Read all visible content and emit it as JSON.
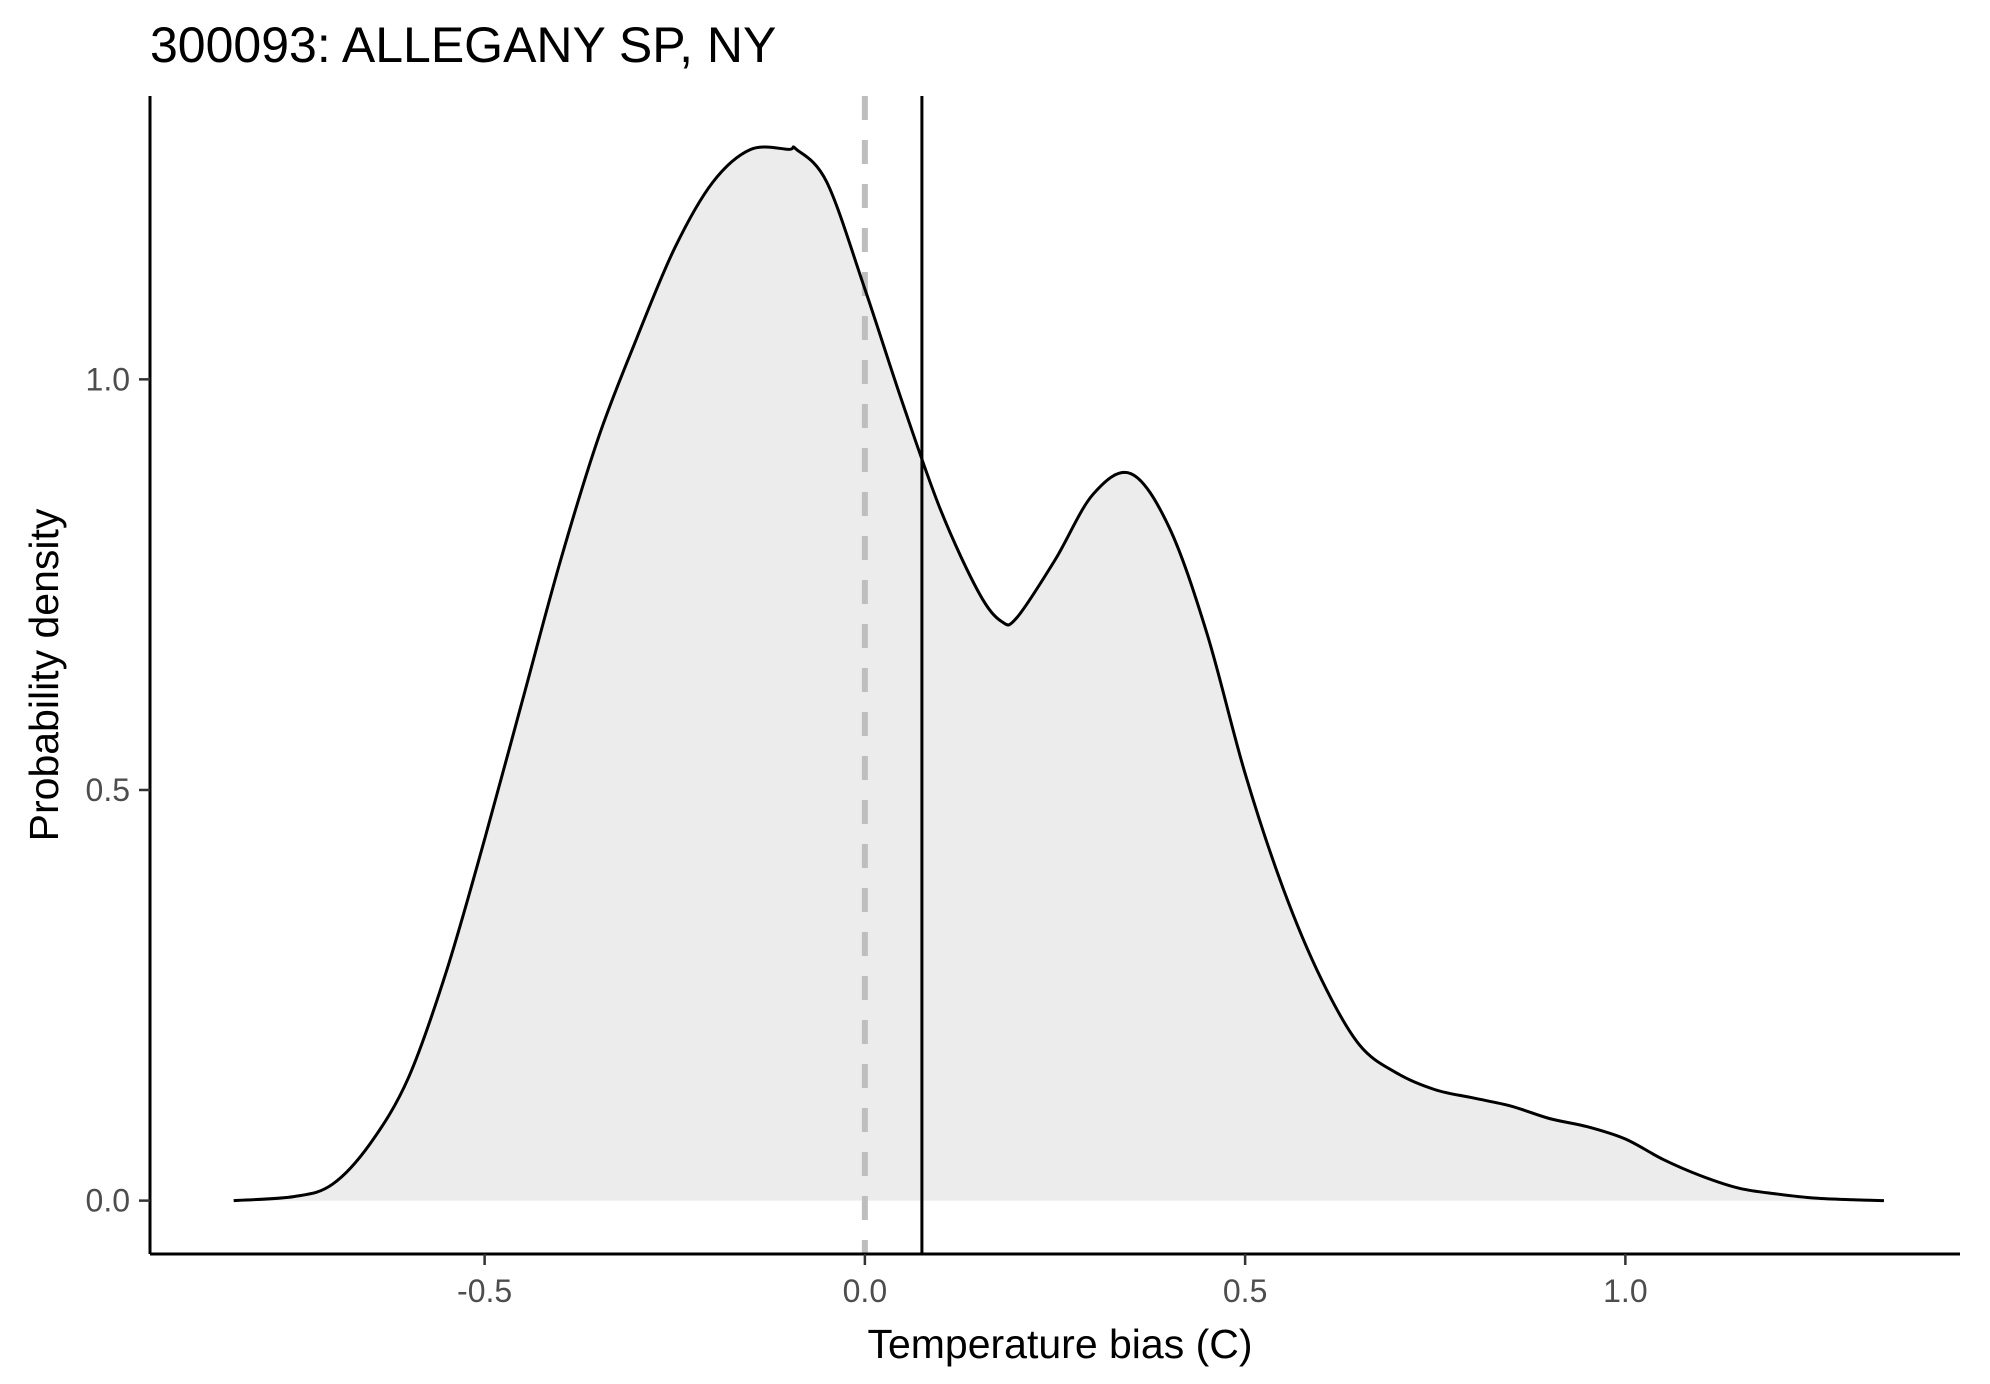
{
  "chart_data": {
    "type": "area",
    "title": "300093: ALLEGANY SP, NY",
    "xlabel": "Temperature bias (C)",
    "ylabel": "Probability density",
    "xlim": [
      -0.94,
      1.44
    ],
    "ylim": [
      -0.065,
      1.345
    ],
    "x_ticks": [
      -0.5,
      0.0,
      0.5,
      1.0
    ],
    "x_tick_labels": [
      "-0.5",
      "0.0",
      "0.5",
      "1.0"
    ],
    "y_ticks": [
      0.0,
      0.5,
      1.0
    ],
    "y_tick_labels": [
      "0.0",
      "0.5",
      "1.0"
    ],
    "grid": false,
    "reference_lines": [
      {
        "type": "vertical",
        "x": 0.0,
        "style": "dashed",
        "color": "#bebebe"
      },
      {
        "type": "vertical",
        "x": 0.075,
        "style": "solid",
        "color": "#000000"
      }
    ],
    "series": [
      {
        "fill": "#edeced",
        "line": "#000000",
        "x": [
          -0.83,
          -0.75,
          -0.7,
          -0.65,
          -0.6,
          -0.55,
          -0.5,
          -0.45,
          -0.4,
          -0.35,
          -0.3,
          -0.25,
          -0.2,
          -0.15,
          -0.1,
          -0.09,
          -0.05,
          0.0,
          0.05,
          0.1,
          0.15,
          0.18,
          0.2,
          0.25,
          0.3,
          0.35,
          0.4,
          0.45,
          0.5,
          0.55,
          0.6,
          0.65,
          0.7,
          0.75,
          0.8,
          0.85,
          0.9,
          0.95,
          1.0,
          1.05,
          1.1,
          1.15,
          1.2,
          1.25,
          1.3,
          1.34
        ],
        "y": [
          0.0,
          0.005,
          0.02,
          0.07,
          0.15,
          0.28,
          0.44,
          0.61,
          0.78,
          0.93,
          1.05,
          1.16,
          1.24,
          1.28,
          1.28,
          1.28,
          1.24,
          1.11,
          0.97,
          0.84,
          0.74,
          0.705,
          0.71,
          0.78,
          0.86,
          0.885,
          0.82,
          0.69,
          0.52,
          0.38,
          0.27,
          0.19,
          0.155,
          0.135,
          0.125,
          0.115,
          0.1,
          0.09,
          0.075,
          0.05,
          0.03,
          0.015,
          0.008,
          0.003,
          0.001,
          0.0
        ]
      }
    ]
  }
}
